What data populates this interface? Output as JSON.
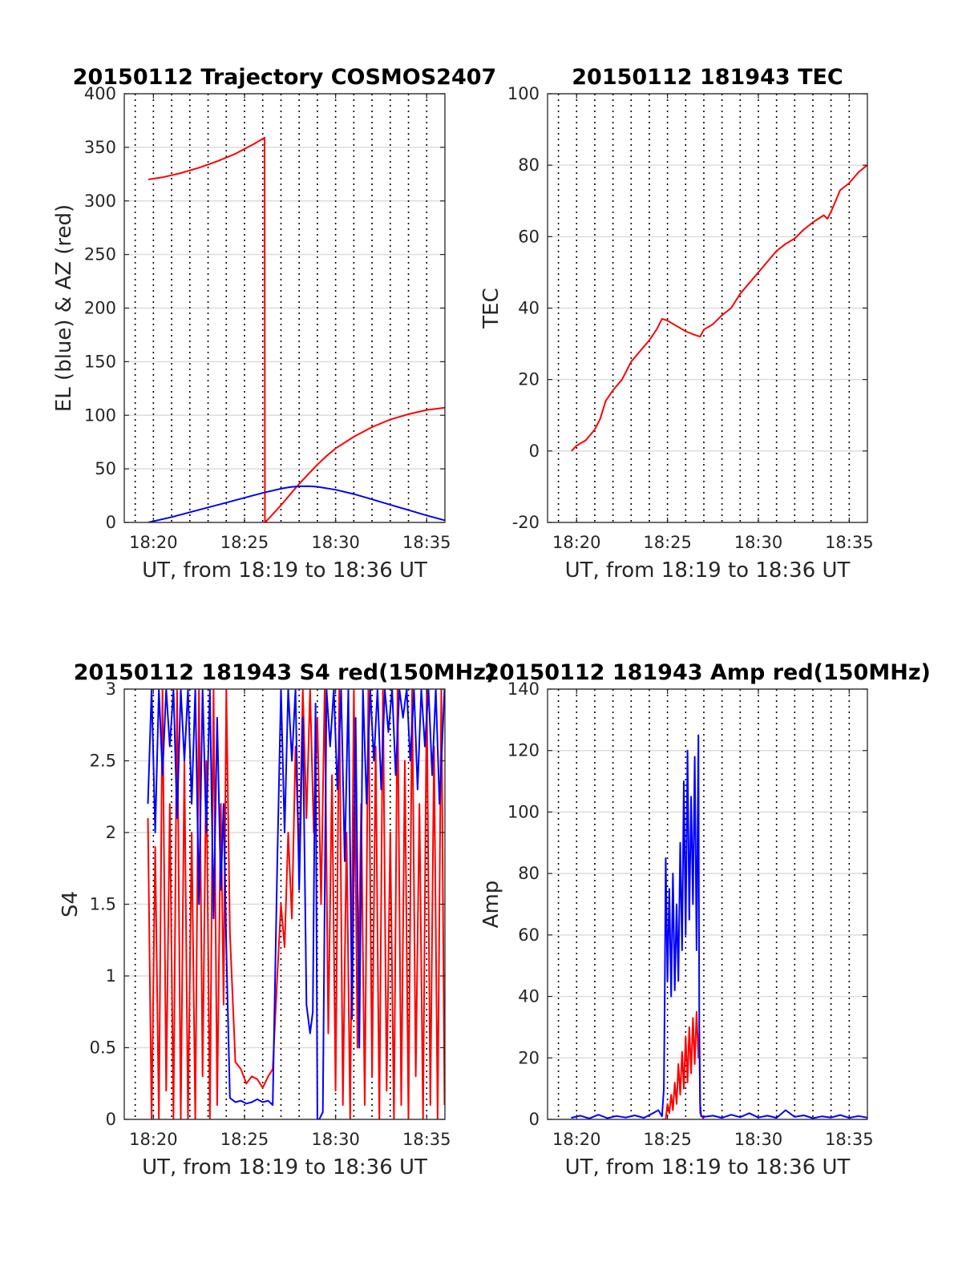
{
  "chart_data": [
    {
      "type": "line",
      "title": "20150112 Trajectory COSMOS2407",
      "xlabel": "UT, from 18:19 to 18:36 UT",
      "ylabel": "EL (blue) & AZ (red)",
      "xlim": [
        18.4,
        36.0
      ],
      "ylim": [
        0,
        400
      ],
      "xticks": [
        20,
        25,
        30,
        35
      ],
      "xtick_labels": [
        "18:20",
        "18:25",
        "18:30",
        "18:35"
      ],
      "yticks": [
        0,
        50,
        100,
        150,
        200,
        250,
        300,
        350,
        400
      ],
      "ytick_labels": [
        "0",
        "50",
        "100",
        "150",
        "200",
        "250",
        "300",
        "350",
        "400"
      ],
      "minor_x_dotted": [
        19,
        20,
        21,
        22,
        23,
        24,
        25,
        26,
        27,
        28,
        29,
        30,
        31,
        32,
        33,
        34,
        35
      ],
      "grid": true,
      "series": [
        {
          "color": "#ff0000",
          "x": [
            19.72,
            20.5,
            21.5,
            22.5,
            23.5,
            24.5,
            25.5,
            26.1,
            26.12,
            26.3,
            27,
            27.5,
            28,
            28.5,
            29,
            29.5,
            30,
            31,
            32,
            33,
            34,
            35,
            35.98
          ],
          "y": [
            320,
            322,
            326,
            331,
            337,
            344,
            353,
            359,
            0,
            3,
            16,
            26,
            36,
            45,
            54,
            62,
            69,
            80,
            89,
            96,
            101,
            105,
            107
          ]
        },
        {
          "color": "#0000ff",
          "x": [
            19.72,
            21,
            22,
            23,
            24,
            25,
            26,
            27,
            27.5,
            28,
            28.5,
            29,
            30,
            31,
            32,
            33,
            34,
            35,
            35.98
          ],
          "y": [
            0,
            5,
            9.5,
            14,
            18.5,
            23,
            27.5,
            31.5,
            33,
            33.7,
            33.8,
            33.3,
            30.5,
            26.5,
            21.5,
            16.5,
            11.5,
            6.5,
            2
          ]
        }
      ]
    },
    {
      "type": "line",
      "title": "20150112 181943 TEC",
      "xlabel": "UT, from 18:19 to 18:36 UT",
      "ylabel": "TEC",
      "xlim": [
        18.4,
        36.0
      ],
      "ylim": [
        -20,
        100
      ],
      "xticks": [
        20,
        25,
        30,
        35
      ],
      "xtick_labels": [
        "18:20",
        "18:25",
        "18:30",
        "18:35"
      ],
      "yticks": [
        -20,
        0,
        20,
        40,
        60,
        80,
        100
      ],
      "ytick_labels": [
        "-20",
        "0",
        "20",
        "40",
        "60",
        "80",
        "100"
      ],
      "minor_x_dotted": [
        19,
        20,
        21,
        22,
        23,
        24,
        25,
        26,
        27,
        28,
        29,
        30,
        31,
        32,
        33,
        34,
        35
      ],
      "grid": true,
      "series": [
        {
          "color": "#ff0000",
          "x": [
            19.72,
            20,
            20.5,
            21,
            21.3,
            21.6,
            22,
            22.5,
            23,
            23.5,
            24,
            24.4,
            24.7,
            25,
            25.5,
            26,
            26.5,
            26.8,
            27,
            27.5,
            28,
            28.5,
            29,
            29.5,
            30,
            30.5,
            31,
            31.5,
            32,
            32.5,
            33,
            33.3,
            33.6,
            33.8,
            34,
            34.5,
            35,
            35.5,
            35.98
          ],
          "y": [
            0,
            1.5,
            3,
            6,
            9,
            14,
            17,
            20,
            25,
            28,
            31,
            34,
            37,
            36.5,
            35,
            33.5,
            32.5,
            32,
            34,
            35.5,
            38,
            40,
            44,
            47,
            50,
            53,
            56,
            58,
            59.5,
            62,
            64,
            65,
            66,
            65,
            67,
            73,
            75,
            78,
            80
          ]
        }
      ]
    },
    {
      "type": "line",
      "title": "20150112 181943 S4 red(150MHz)",
      "xlabel": "UT, from 18:19 to 18:36 UT",
      "ylabel": "S4",
      "xlim": [
        18.4,
        36.0
      ],
      "ylim": [
        0,
        3
      ],
      "xticks": [
        20,
        25,
        30,
        35
      ],
      "xtick_labels": [
        "18:20",
        "18:25",
        "18:30",
        "18:35"
      ],
      "yticks": [
        0,
        0.5,
        1,
        1.5,
        2,
        2.5,
        3
      ],
      "ytick_labels": [
        "0",
        "0.5",
        "1",
        "1.5",
        "2",
        "2.5",
        "3"
      ],
      "minor_x_dotted": [
        19,
        20,
        21,
        22,
        23,
        24,
        25,
        26,
        27,
        28,
        29,
        30,
        31,
        32,
        33,
        34,
        35
      ],
      "grid": true,
      "series": [
        {
          "color": "#ff0000",
          "x": [
            19.7,
            19.9,
            20.1,
            20.3,
            20.5,
            20.7,
            20.9,
            21.1,
            21.3,
            21.5,
            21.7,
            21.9,
            22.1,
            22.3,
            22.5,
            22.7,
            22.9,
            23.1,
            23.3,
            23.5,
            23.7,
            23.85,
            24.0,
            24.2,
            24.5,
            24.8,
            25.1,
            25.4,
            25.7,
            26.0,
            26.3,
            26.55,
            26.8,
            27.0,
            27.2,
            27.4,
            27.6,
            27.8,
            28.0,
            28.2,
            28.4,
            28.6,
            28.8,
            29.0,
            29.2,
            29.4,
            29.6,
            29.8,
            30.0,
            30.2,
            30.4,
            30.6,
            30.8,
            31.0,
            31.2,
            31.4,
            31.6,
            31.8,
            32.0,
            32.2,
            32.4,
            32.6,
            32.8,
            33.0,
            33.2,
            33.4,
            33.6,
            33.8,
            34.0,
            34.2,
            34.4,
            34.6,
            34.8,
            35.0,
            35.2,
            35.4,
            35.6,
            35.8,
            35.98
          ],
          "y": [
            2.1,
            0,
            1.9,
            0,
            3,
            0.2,
            2.2,
            0,
            3,
            0,
            2.5,
            0,
            2.0,
            0,
            3,
            0.3,
            2.5,
            0,
            3,
            0.1,
            2.2,
            0.8,
            3,
            1.3,
            0.4,
            0.35,
            0.25,
            0.3,
            0.28,
            0.22,
            0.3,
            0.35,
            1.0,
            1.5,
            1.2,
            2.0,
            1.4,
            2.6,
            1.8,
            3,
            2.1,
            3,
            2.0,
            2.8,
            1.5,
            3,
            0.6,
            2.4,
            0.2,
            3,
            0.1,
            2.0,
            0,
            3,
            0.5,
            2.2,
            0.1,
            3,
            0.3,
            2.6,
            0,
            3,
            0.2,
            2.0,
            0,
            3,
            0.1,
            2.5,
            0,
            3,
            0.3,
            2.2,
            0,
            3,
            0.1,
            2.6,
            0,
            3,
            0.1
          ]
        },
        {
          "color": "#0000ff",
          "x": [
            19.7,
            19.9,
            20.1,
            20.3,
            20.5,
            20.7,
            20.9,
            21.1,
            21.3,
            21.5,
            21.7,
            21.9,
            22.1,
            22.3,
            22.5,
            22.7,
            22.9,
            23.1,
            23.3,
            23.5,
            23.7,
            23.85,
            24.0,
            24.2,
            24.5,
            24.8,
            25.1,
            25.4,
            25.7,
            26.0,
            26.3,
            26.55,
            26.8,
            27.0,
            27.2,
            27.4,
            27.6,
            27.8,
            28.0,
            28.2,
            28.4,
            28.6,
            28.75,
            28.9,
            29.0,
            29.1,
            29.3,
            29.5,
            29.7,
            29.9,
            30.1,
            30.3,
            30.5,
            30.7,
            30.9,
            31.1,
            31.3,
            31.5,
            31.7,
            31.9,
            32.1,
            32.3,
            32.5,
            32.7,
            32.9,
            33.1,
            33.3,
            33.5,
            33.7,
            33.9,
            34.1,
            34.3,
            34.5,
            34.7,
            34.9,
            35.1,
            35.3,
            35.5,
            35.7,
            35.98
          ],
          "y": [
            2.2,
            3,
            2.0,
            3,
            2.4,
            3,
            2.6,
            3,
            2.1,
            3,
            2.5,
            3,
            2.2,
            3,
            1.5,
            3,
            2.0,
            3,
            1.4,
            2.8,
            1.6,
            2.2,
            1.2,
            0.15,
            0.12,
            0.13,
            0.11,
            0.12,
            0.14,
            0.12,
            0.13,
            0.1,
            1.8,
            3,
            2.0,
            3,
            2.5,
            3,
            1.6,
            2.8,
            0.8,
            0.6,
            0.75,
            2.9,
            0,
            0,
            0.05,
            3,
            2.6,
            3,
            2.3,
            3,
            1.8,
            3,
            0.7,
            2.8,
            0.5,
            3,
            2.2,
            3,
            2.5,
            3,
            2.3,
            3,
            2.7,
            3,
            2.4,
            3,
            2.8,
            3,
            2.5,
            3,
            2.3,
            3,
            2.6,
            3,
            2.4,
            3,
            2.2,
            3
          ]
        }
      ]
    },
    {
      "type": "line",
      "title": "20150112 181943 Amp red(150MHz)",
      "xlabel": "UT, from 18:19 to 18:36 UT",
      "ylabel": "Amp",
      "xlim": [
        18.4,
        36.0
      ],
      "ylim": [
        0,
        140
      ],
      "xticks": [
        20,
        25,
        30,
        35
      ],
      "xtick_labels": [
        "18:20",
        "18:25",
        "18:30",
        "18:35"
      ],
      "yticks": [
        0,
        20,
        40,
        60,
        80,
        100,
        120,
        140
      ],
      "ytick_labels": [
        "0",
        "20",
        "40",
        "60",
        "80",
        "100",
        "120",
        "140"
      ],
      "minor_x_dotted": [
        19,
        20,
        21,
        22,
        23,
        24,
        25,
        26,
        27,
        28,
        29,
        30,
        31,
        32,
        33,
        34,
        35
      ],
      "grid": true,
      "series": [
        {
          "color": "#ff0000",
          "x": [
            24.7,
            24.9,
            25.0,
            25.1,
            25.2,
            25.3,
            25.4,
            25.5,
            25.6,
            25.7,
            25.8,
            25.9,
            26.0,
            26.1,
            26.2,
            26.3,
            26.4,
            26.5,
            26.6,
            26.7,
            26.75,
            26.8,
            27.0
          ],
          "y": [
            0,
            0,
            5,
            2,
            8,
            3,
            12,
            5,
            18,
            8,
            22,
            10,
            27,
            12,
            30,
            15,
            33,
            18,
            35,
            20,
            28,
            2,
            0
          ]
        },
        {
          "color": "#0000ff",
          "x": [
            19.7,
            20.2,
            20.7,
            21.2,
            21.7,
            22.2,
            22.7,
            23.2,
            23.7,
            24.2,
            24.5,
            24.7,
            24.8,
            24.85,
            24.9,
            25.0,
            25.1,
            25.2,
            25.3,
            25.4,
            25.5,
            25.6,
            25.7,
            25.8,
            25.9,
            26.0,
            26.1,
            26.2,
            26.3,
            26.4,
            26.5,
            26.6,
            26.7,
            26.75,
            26.8,
            26.85,
            27.0,
            27.5,
            28.0,
            28.5,
            29.0,
            29.5,
            30.0,
            30.5,
            31.0,
            31.5,
            32.0,
            32.5,
            33.0,
            33.5,
            34.0,
            34.5,
            35.0,
            35.5,
            35.98
          ],
          "y": [
            0.5,
            1.2,
            0.3,
            1.5,
            0.4,
            1.1,
            0.6,
            1.3,
            0.5,
            2.0,
            3.0,
            1.0,
            10,
            40,
            85,
            45,
            75,
            40,
            80,
            42,
            70,
            45,
            90,
            55,
            110,
            60,
            120,
            65,
            105,
            70,
            118,
            55,
            125,
            30,
            5,
            1,
            0.8,
            1.2,
            0.5,
            1.5,
            0.7,
            2.0,
            0.6,
            1.2,
            0.5,
            3.0,
            0.8,
            1.3,
            0.4,
            1.0,
            0.6,
            1.4,
            0.5,
            1.1,
            0.6
          ]
        }
      ]
    }
  ]
}
